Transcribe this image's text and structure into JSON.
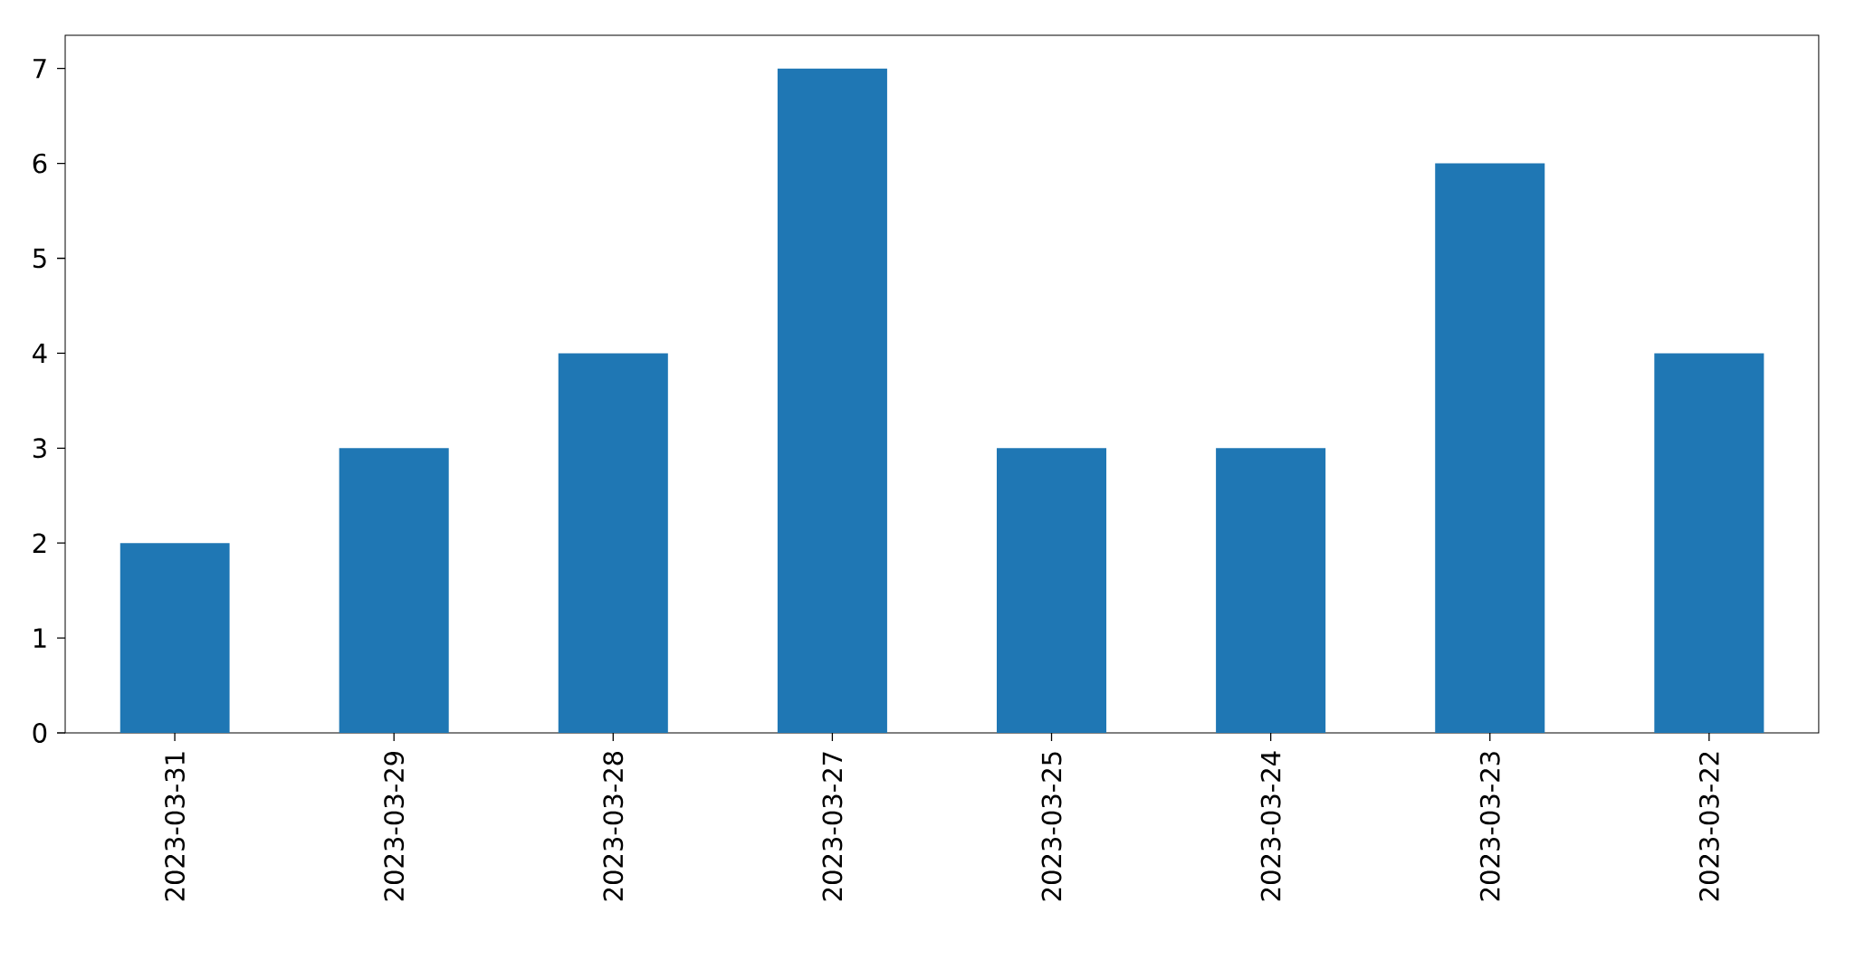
{
  "chart_data": {
    "type": "bar",
    "categories": [
      "2023-03-31",
      "2023-03-29",
      "2023-03-28",
      "2023-03-27",
      "2023-03-25",
      "2023-03-24",
      "2023-03-23",
      "2023-03-22"
    ],
    "values": [
      2,
      3,
      4,
      7,
      3,
      3,
      6,
      4
    ],
    "color": "#1f77b4",
    "ylim": [
      0,
      7.35
    ],
    "yticks": [
      0,
      1,
      2,
      3,
      4,
      5,
      6,
      7
    ]
  }
}
